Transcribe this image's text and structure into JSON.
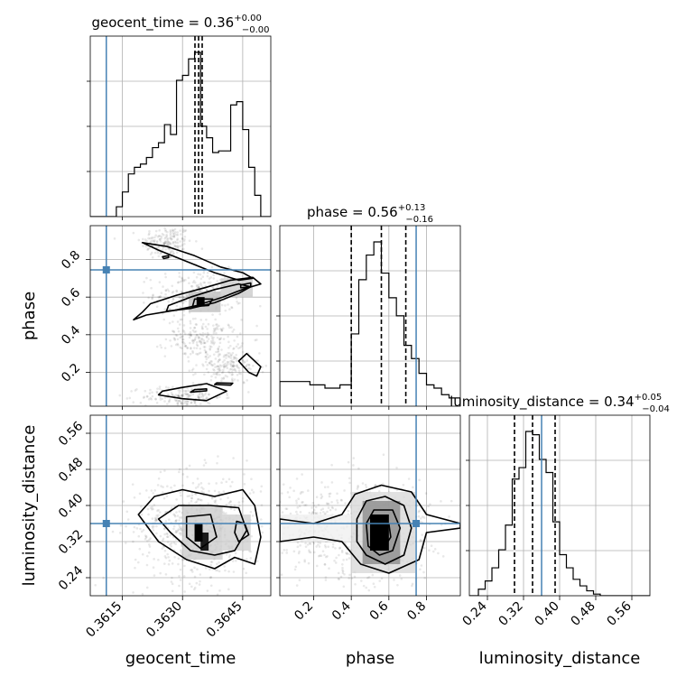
{
  "chart_data": {
    "type": "corner",
    "parameters": [
      "geocent_time",
      "phase",
      "luminosity_distance"
    ],
    "axes_labels": {
      "geocent_time": "geocent_time",
      "phase": "phase",
      "luminosity_distance": "luminosity_distance"
    },
    "titles": {
      "geocent_time": {
        "label": "geocent_time",
        "median": "0.36",
        "plus": "+0.00",
        "minus": "−0.00"
      },
      "phase": {
        "label": "phase",
        "median": "0.56",
        "plus": "+0.13",
        "minus": "−0.16"
      },
      "luminosity_distance": {
        "label": "luminosity_distance",
        "median": "0.34",
        "plus": "+0.05",
        "minus": "−0.04"
      }
    },
    "ranges": {
      "geocent_time": [
        0.3607,
        0.3652
      ],
      "phase": [
        0.02,
        0.98
      ],
      "luminosity_distance": [
        0.2,
        0.6
      ]
    },
    "ticks": {
      "geocent_time": [
        0.3615,
        0.363,
        0.3645
      ],
      "phase": [
        0.2,
        0.4,
        0.6,
        0.8
      ],
      "luminosity_distance": [
        0.24,
        0.32,
        0.4,
        0.48,
        0.56
      ]
    },
    "tick_labels": {
      "geocent_time": [
        "0.3615",
        "0.3630",
        "0.3645"
      ],
      "phase": [
        "0.2",
        "0.4",
        "0.6",
        "0.8"
      ],
      "luminosity_distance": [
        "0.24",
        "0.32",
        "0.40",
        "0.48",
        "0.56"
      ]
    },
    "truths": {
      "geocent_time": 0.3611,
      "phase": 0.745,
      "luminosity_distance": 0.36
    },
    "quantiles": {
      "geocent_time": [
        0.36331,
        0.3634,
        0.36349
      ],
      "phase": [
        0.4,
        0.56,
        0.69
      ],
      "luminosity_distance": [
        0.3,
        0.34,
        0.39
      ]
    },
    "histograms": {
      "geocent_time": {
        "edges": [
          0.3607,
          0.36135,
          0.3615,
          0.36165,
          0.3618,
          0.36195,
          0.3621,
          0.36225,
          0.3624,
          0.36255,
          0.3627,
          0.36285,
          0.363,
          0.36315,
          0.3633,
          0.36345,
          0.3636,
          0.36375,
          0.3639,
          0.36405,
          0.3642,
          0.36435,
          0.3645,
          0.36465,
          0.3648,
          0.36495,
          0.3652
        ],
        "counts": [
          0,
          0.06,
          0.15,
          0.26,
          0.3,
          0.32,
          0.36,
          0.42,
          0.45,
          0.56,
          0.5,
          0.83,
          0.86,
          0.96,
          1.0,
          0.55,
          0.48,
          0.39,
          0.4,
          0.4,
          0.68,
          0.7,
          0.53,
          0.3,
          0.13,
          0
        ]
      },
      "phase": {
        "edges": [
          0.02,
          0.18,
          0.26,
          0.34,
          0.4,
          0.44,
          0.48,
          0.52,
          0.56,
          0.6,
          0.64,
          0.68,
          0.72,
          0.76,
          0.8,
          0.84,
          0.88,
          0.92,
          0.98
        ],
        "counts": [
          0.15,
          0.13,
          0.11,
          0.13,
          0.44,
          0.77,
          0.92,
          1.0,
          0.81,
          0.66,
          0.55,
          0.37,
          0.29,
          0.2,
          0.13,
          0.11,
          0.07,
          0.05
        ]
      },
      "luminosity_distance": {
        "edges": [
          0.2,
          0.22,
          0.235,
          0.25,
          0.265,
          0.28,
          0.295,
          0.31,
          0.325,
          0.34,
          0.355,
          0.37,
          0.385,
          0.4,
          0.415,
          0.43,
          0.445,
          0.46,
          0.475,
          0.49,
          0.6
        ],
        "counts": [
          0,
          0.04,
          0.09,
          0.17,
          0.28,
          0.43,
          0.71,
          0.78,
          1.0,
          0.98,
          0.83,
          0.75,
          0.45,
          0.25,
          0.17,
          0.1,
          0.06,
          0.03,
          0.01,
          0
        ]
      }
    },
    "pairs": [
      {
        "x": "geocent_time",
        "y": "phase",
        "density_blocks": [
          {
            "x": [
              0.36335,
              0.36355
            ],
            "y": [
              0.55,
              0.6
            ],
            "level": 1.0
          },
          {
            "x": [
              0.36315,
              0.36395
            ],
            "y": [
              0.52,
              0.63
            ],
            "level": 0.25
          },
          {
            "x": [
              0.36395,
              0.36475
            ],
            "y": [
              0.6,
              0.7
            ],
            "level": 0.2
          }
        ],
        "contours": [
          [
            [
              0.36178,
              0.48
            ],
            [
              0.3621,
              0.505
            ],
            [
              0.3628,
              0.53
            ],
            [
              0.36335,
              0.555
            ],
            [
              0.364,
              0.6
            ],
            [
              0.36455,
              0.645
            ],
            [
              0.36495,
              0.67
            ],
            [
              0.36475,
              0.705
            ],
            [
              0.3642,
              0.69
            ],
            [
              0.36355,
              0.65
            ],
            [
              0.36285,
              0.61
            ],
            [
              0.3622,
              0.565
            ],
            [
              0.362,
              0.52
            ],
            [
              0.36178,
              0.48
            ]
          ],
          [
            [
              0.3626,
              0.525
            ],
            [
              0.3632,
              0.54
            ],
            [
              0.3638,
              0.57
            ],
            [
              0.3644,
              0.62
            ],
            [
              0.3647,
              0.655
            ],
            [
              0.3644,
              0.67
            ],
            [
              0.3638,
              0.64
            ],
            [
              0.3632,
              0.6
            ],
            [
              0.36265,
              0.555
            ],
            [
              0.3626,
              0.525
            ]
          ],
          [
            [
              0.36325,
              0.55
            ],
            [
              0.36365,
              0.555
            ],
            [
              0.36375,
              0.59
            ],
            [
              0.3633,
              0.59
            ],
            [
              0.36325,
              0.55
            ]
          ],
          [
            [
              0.36445,
              0.65
            ],
            [
              0.3647,
              0.655
            ],
            [
              0.3647,
              0.675
            ],
            [
              0.36445,
              0.665
            ],
            [
              0.36445,
              0.65
            ]
          ],
          [
            [
              0.362,
              0.89
            ],
            [
              0.3626,
              0.87
            ],
            [
              0.3633,
              0.82
            ],
            [
              0.36395,
              0.76
            ],
            [
              0.3645,
              0.73
            ],
            [
              0.36475,
              0.7
            ],
            [
              0.3644,
              0.69
            ],
            [
              0.3638,
              0.73
            ],
            [
              0.3631,
              0.79
            ],
            [
              0.3624,
              0.85
            ],
            [
              0.362,
              0.89
            ]
          ],
          [
            [
              0.36253,
              0.805
            ],
            [
              0.36265,
              0.81
            ],
            [
              0.36265,
              0.82
            ],
            [
              0.3625,
              0.815
            ],
            [
              0.36253,
              0.805
            ]
          ],
          [
            [
              0.3646,
              0.3
            ],
            [
              0.36495,
              0.23
            ],
            [
              0.36485,
              0.18
            ],
            [
              0.36465,
              0.2
            ],
            [
              0.3644,
              0.26
            ],
            [
              0.3646,
              0.3
            ]
          ],
          [
            [
              0.3624,
              0.08
            ],
            [
              0.363,
              0.06
            ],
            [
              0.3636,
              0.05
            ],
            [
              0.3641,
              0.1
            ],
            [
              0.3636,
              0.14
            ],
            [
              0.363,
              0.12
            ],
            [
              0.3625,
              0.1
            ],
            [
              0.3624,
              0.08
            ]
          ],
          [
            [
              0.3632,
              0.095
            ],
            [
              0.3636,
              0.102
            ],
            [
              0.3636,
              0.112
            ],
            [
              0.3633,
              0.108
            ],
            [
              0.3632,
              0.095
            ]
          ],
          [
            [
              0.3638,
              0.135
            ],
            [
              0.3642,
              0.132
            ],
            [
              0.36425,
              0.142
            ],
            [
              0.36385,
              0.144
            ],
            [
              0.3638,
              0.135
            ]
          ]
        ],
        "scatter_clusters": [
          {
            "cx": 0.3626,
            "cy": 0.89,
            "sx": 0.00032,
            "sy": 0.045,
            "n": 180
          },
          {
            "cx": 0.3634,
            "cy": 0.62,
            "sx": 0.00055,
            "sy": 0.06,
            "n": 260
          },
          {
            "cx": 0.3635,
            "cy": 0.38,
            "sx": 0.00045,
            "sy": 0.05,
            "n": 200
          },
          {
            "cx": 0.3641,
            "cy": 0.23,
            "sx": 0.0004,
            "sy": 0.045,
            "n": 180
          },
          {
            "cx": 0.363,
            "cy": 0.07,
            "sx": 0.0005,
            "sy": 0.03,
            "n": 180
          }
        ]
      },
      {
        "x": "geocent_time",
        "y": "luminosity_distance",
        "density_blocks": [
          {
            "x": [
              0.3633,
              0.3635
            ],
            "y": [
              0.32,
              0.36
            ],
            "level": 1.0
          },
          {
            "x": [
              0.36345,
              0.36365
            ],
            "y": [
              0.3,
              0.34
            ],
            "level": 0.9
          },
          {
            "x": [
              0.363,
              0.364
            ],
            "y": [
              0.28,
              0.4
            ],
            "level": 0.2
          },
          {
            "x": [
              0.364,
              0.3647
            ],
            "y": [
              0.3,
              0.38
            ],
            "level": 0.18
          }
        ],
        "contours": [
          [
            [
              0.3619,
              0.38
            ],
            [
              0.3623,
              0.42
            ],
            [
              0.363,
              0.435
            ],
            [
              0.3638,
              0.42
            ],
            [
              0.3645,
              0.435
            ],
            [
              0.3648,
              0.4
            ],
            [
              0.36495,
              0.33
            ],
            [
              0.3648,
              0.27
            ],
            [
              0.3643,
              0.285
            ],
            [
              0.3638,
              0.26
            ],
            [
              0.3631,
              0.28
            ],
            [
              0.3624,
              0.32
            ],
            [
              0.3619,
              0.38
            ]
          ],
          [
            [
              0.3624,
              0.37
            ],
            [
              0.3629,
              0.4
            ],
            [
              0.3637,
              0.4
            ],
            [
              0.3644,
              0.395
            ],
            [
              0.3646,
              0.345
            ],
            [
              0.3643,
              0.3
            ],
            [
              0.3638,
              0.29
            ],
            [
              0.3632,
              0.3
            ],
            [
              0.3627,
              0.34
            ],
            [
              0.3624,
              0.37
            ]
          ],
          [
            [
              0.3631,
              0.375
            ],
            [
              0.3637,
              0.38
            ],
            [
              0.36385,
              0.33
            ],
            [
              0.36345,
              0.305
            ],
            [
              0.3631,
              0.33
            ],
            [
              0.3631,
              0.375
            ]
          ],
          [
            [
              0.36435,
              0.365
            ],
            [
              0.36455,
              0.36
            ],
            [
              0.36465,
              0.335
            ],
            [
              0.3644,
              0.32
            ],
            [
              0.3643,
              0.34
            ],
            [
              0.36435,
              0.365
            ]
          ]
        ],
        "scatter_clusters": [
          {
            "cx": 0.3634,
            "cy": 0.35,
            "sx": 0.0008,
            "sy": 0.06,
            "n": 650
          }
        ]
      },
      {
        "x": "phase",
        "y": "luminosity_distance",
        "density_blocks": [
          {
            "x": [
              0.5,
              0.6
            ],
            "y": [
              0.3,
              0.38
            ],
            "level": 1.0
          },
          {
            "x": [
              0.46,
              0.66
            ],
            "y": [
              0.27,
              0.41
            ],
            "level": 0.45
          },
          {
            "x": [
              0.4,
              0.74
            ],
            "y": [
              0.25,
              0.43
            ],
            "level": 0.15
          },
          {
            "x": [
              0.02,
              0.4
            ],
            "y": [
              0.32,
              0.38
            ],
            "level": 0.06
          }
        ],
        "contours": [
          [
            [
              0.02,
              0.37
            ],
            [
              0.2,
              0.36
            ],
            [
              0.35,
              0.38
            ],
            [
              0.42,
              0.425
            ],
            [
              0.56,
              0.445
            ],
            [
              0.72,
              0.43
            ],
            [
              0.8,
              0.38
            ],
            [
              0.98,
              0.36
            ],
            [
              0.98,
              0.35
            ],
            [
              0.8,
              0.34
            ],
            [
              0.76,
              0.28
            ],
            [
              0.6,
              0.25
            ],
            [
              0.45,
              0.27
            ],
            [
              0.35,
              0.32
            ],
            [
              0.2,
              0.33
            ],
            [
              0.02,
              0.32
            ]
          ],
          [
            [
              0.43,
              0.37
            ],
            [
              0.48,
              0.41
            ],
            [
              0.58,
              0.42
            ],
            [
              0.68,
              0.4
            ],
            [
              0.72,
              0.35
            ],
            [
              0.68,
              0.29
            ],
            [
              0.58,
              0.27
            ],
            [
              0.48,
              0.29
            ],
            [
              0.43,
              0.32
            ],
            [
              0.43,
              0.37
            ]
          ],
          [
            [
              0.48,
              0.36
            ],
            [
              0.52,
              0.39
            ],
            [
              0.62,
              0.39
            ],
            [
              0.66,
              0.35
            ],
            [
              0.62,
              0.3
            ],
            [
              0.55,
              0.29
            ],
            [
              0.49,
              0.31
            ],
            [
              0.48,
              0.36
            ]
          ],
          [
            [
              0.53,
              0.35
            ],
            [
              0.56,
              0.365
            ],
            [
              0.6,
              0.36
            ],
            [
              0.61,
              0.33
            ],
            [
              0.58,
              0.31
            ],
            [
              0.54,
              0.32
            ],
            [
              0.53,
              0.35
            ]
          ]
        ],
        "scatter_clusters": [
          {
            "cx": 0.56,
            "cy": 0.34,
            "sx": 0.13,
            "sy": 0.06,
            "n": 450
          },
          {
            "cx": 0.2,
            "cy": 0.35,
            "sx": 0.14,
            "sy": 0.05,
            "n": 300
          }
        ]
      }
    ]
  }
}
